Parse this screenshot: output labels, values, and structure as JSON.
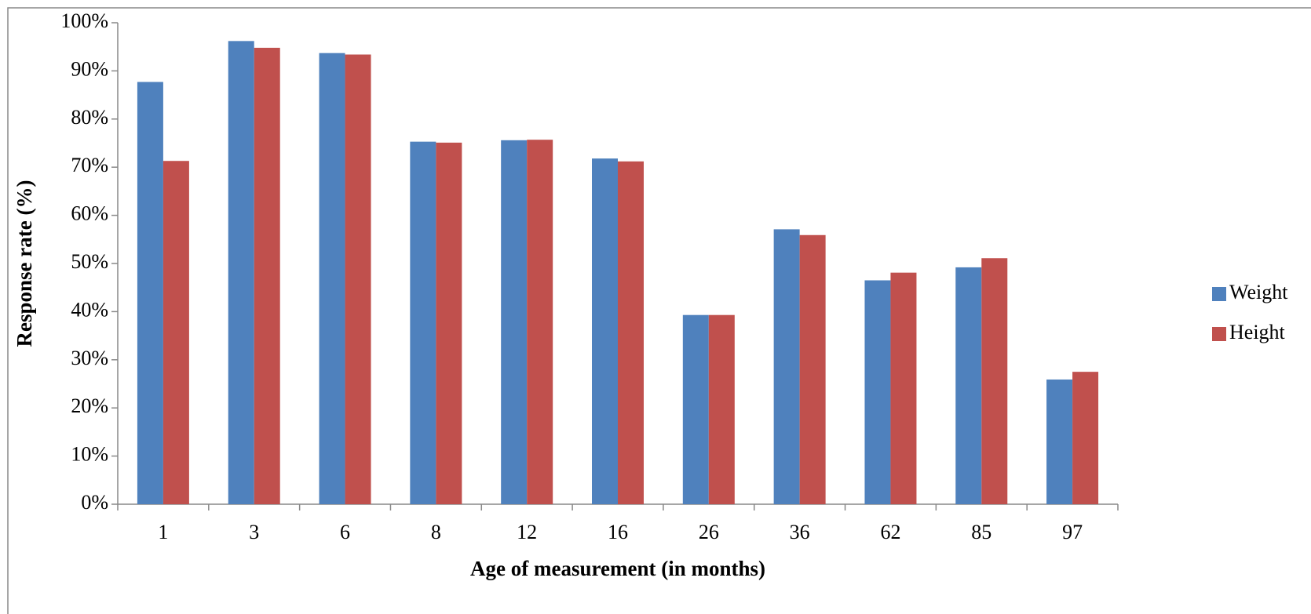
{
  "chart_data": {
    "type": "bar",
    "x_label": "Age of measurement (in months)",
    "y_label": "Response rate (%)",
    "categories": [
      "1",
      "3",
      "6",
      "8",
      "12",
      "16",
      "26",
      "36",
      "62",
      "85",
      "97"
    ],
    "series": [
      {
        "name": "Weight",
        "color": "#4f81bd",
        "values": [
          87.7,
          96.2,
          93.7,
          75.3,
          75.6,
          71.8,
          39.3,
          57.1,
          46.5,
          49.2,
          25.9
        ]
      },
      {
        "name": "Height",
        "color": "#c0504d",
        "values": [
          71.3,
          94.8,
          93.4,
          75.1,
          75.7,
          71.2,
          39.3,
          55.9,
          48.1,
          51.1,
          27.5
        ]
      }
    ],
    "ylim": [
      0,
      100
    ],
    "yticks": [
      {
        "value": 0,
        "label": "0%"
      },
      {
        "value": 10,
        "label": "10%"
      },
      {
        "value": 20,
        "label": "20%"
      },
      {
        "value": 30,
        "label": "30%"
      },
      {
        "value": 40,
        "label": "40%"
      },
      {
        "value": 50,
        "label": "50%"
      },
      {
        "value": 60,
        "label": "60%"
      },
      {
        "value": 70,
        "label": "70%"
      },
      {
        "value": 80,
        "label": "80%"
      },
      {
        "value": 90,
        "label": "90%"
      },
      {
        "value": 100,
        "label": "100%"
      }
    ],
    "legend": "right"
  }
}
